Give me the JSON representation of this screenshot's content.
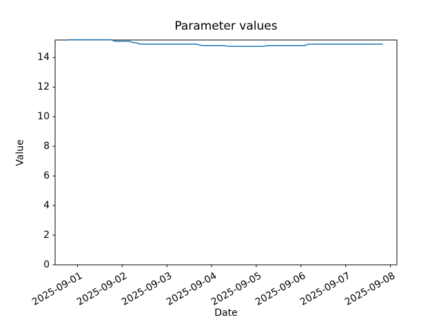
{
  "figure": {
    "background": "#ffffff",
    "text_color": "#000000"
  },
  "chart_data": {
    "type": "line",
    "title": "Parameter values",
    "xlabel": "Date",
    "ylabel": "Value",
    "line_color": "#1f77b4",
    "axes_color": "#000000",
    "grid": false,
    "legend": null,
    "marker": "none",
    "x_tick_labels": [
      "2025-09-01",
      "2025-09-02",
      "2025-09-03",
      "2025-09-04",
      "2025-09-05",
      "2025-09-06",
      "2025-09-07",
      "2025-09-08"
    ],
    "y_ticks": [
      0,
      2,
      4,
      6,
      8,
      10,
      12,
      14
    ],
    "xlim": [
      "2025-08-31 12:00",
      "2025-09-08 03:30"
    ],
    "ylim": [
      0,
      15.18
    ],
    "points": [
      [
        "2025-08-31 19:00",
        15.2
      ],
      [
        "2025-09-01 18:00",
        15.2
      ],
      [
        "2025-09-01 20:00",
        15.1
      ],
      [
        "2025-09-02 04:00",
        15.1
      ],
      [
        "2025-09-02 06:00",
        15.0
      ],
      [
        "2025-09-02 07:30",
        15.0
      ],
      [
        "2025-09-02 09:30",
        14.9
      ],
      [
        "2025-09-03 16:00",
        14.9
      ],
      [
        "2025-09-03 19:00",
        14.8
      ],
      [
        "2025-09-04 07:00",
        14.8
      ],
      [
        "2025-09-04 09:00",
        14.75
      ],
      [
        "2025-09-05 04:00",
        14.75
      ],
      [
        "2025-09-05 06:00",
        14.8
      ],
      [
        "2025-09-06 02:00",
        14.8
      ],
      [
        "2025-09-06 04:00",
        14.9
      ],
      [
        "2025-09-07 20:00",
        14.9
      ]
    ]
  }
}
